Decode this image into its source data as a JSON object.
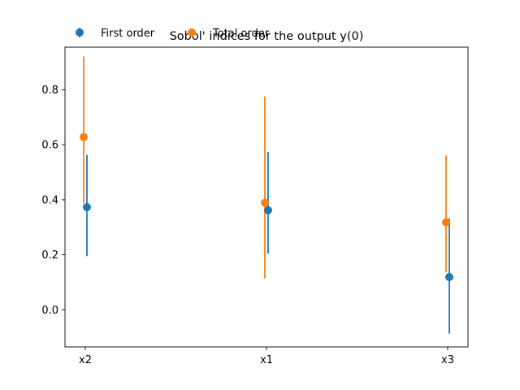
{
  "chart_data": {
    "type": "scatter",
    "title": "Sobol' indices for the output y(0)",
    "xlabel": "",
    "ylabel": "",
    "categories": [
      "x2",
      "x1",
      "x3"
    ],
    "ylim": [
      -0.135,
      0.955
    ],
    "yticks": [
      0.0,
      0.2,
      0.4,
      0.6,
      0.8
    ],
    "ytick_labels": [
      "0.0",
      "0.2",
      "0.4",
      "0.6",
      "0.8"
    ],
    "grid": false,
    "legend_position": "top-left",
    "series": [
      {
        "name": "First order",
        "color": "#1f77b4",
        "values": [
          0.373,
          0.362,
          0.119
        ],
        "lower": [
          0.195,
          0.204,
          -0.087
        ],
        "upper": [
          0.563,
          0.574,
          0.332
        ]
      },
      {
        "name": "Total order",
        "color": "#ff7f0e",
        "values": [
          0.628,
          0.389,
          0.318
        ],
        "lower": [
          0.386,
          0.114,
          0.138
        ],
        "upper": [
          0.921,
          0.775,
          0.561
        ]
      }
    ]
  }
}
